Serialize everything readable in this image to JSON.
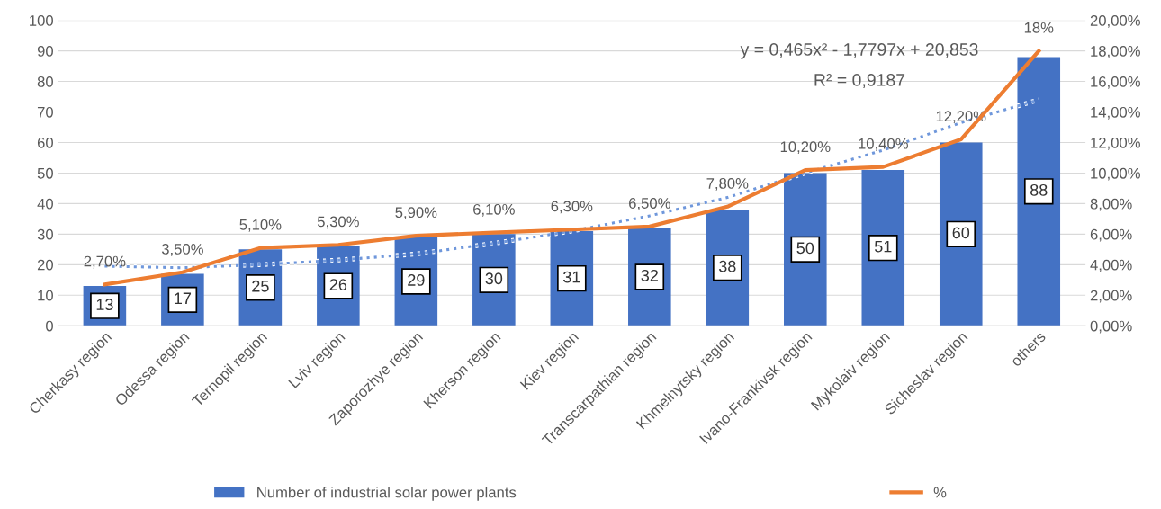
{
  "chart_data": {
    "type": "bar",
    "categories": [
      "Cherkasy region",
      "Odessa region",
      "Ternopil region",
      "Lviv region",
      "Zaporozhye region",
      "Kherson region",
      "Kiev region",
      "Transcarpathian region",
      "Khmelnytsky region",
      "Ivano-Frankivsk region",
      "Mykolaiv region",
      "Sicheslav region",
      "others"
    ],
    "series": [
      {
        "name": "Number of industrial solar power plants",
        "color": "#4472c4",
        "values": [
          13,
          17,
          25,
          26,
          29,
          30,
          31,
          32,
          38,
          50,
          51,
          60,
          88
        ],
        "value_labels": [
          "13",
          "17",
          "25",
          "26",
          "29",
          "30",
          "31",
          "32",
          "38",
          "50",
          "51",
          "60",
          "88"
        ]
      },
      {
        "name": "%",
        "type": "line",
        "axis": "y2",
        "color": "#ed7d31",
        "line_style": "solid",
        "values": [
          2.7,
          3.5,
          5.1,
          5.3,
          5.9,
          6.1,
          6.3,
          6.5,
          7.8,
          10.2,
          10.4,
          12.2,
          18
        ],
        "value_labels": [
          "2,70%",
          "3,50%",
          "5,10%",
          "5,30%",
          "5,90%",
          "6,10%",
          "6,30%",
          "6,50%",
          "7,80%",
          "10,20%",
          "10,40%",
          "12,20%",
          "18%"
        ]
      },
      {
        "type": "line",
        "color": "#6f97db",
        "line_style": "dotted",
        "values": [
          19.5,
          19,
          20,
          21.5,
          23.5,
          27,
          31,
          36,
          42,
          50,
          57.5,
          66.5,
          74
        ]
      }
    ],
    "annotations": [
      "y = 0,465x² - 1,7797x + 20,853",
      "R² = 0,9187"
    ],
    "ylim": [
      0,
      100
    ],
    "yticks": [
      0,
      10,
      20,
      30,
      40,
      50,
      60,
      70,
      80,
      90,
      100
    ],
    "y2lim": [
      0,
      20
    ],
    "y2ticks": [
      {
        "value": 0,
        "label": "0,00%"
      },
      {
        "value": 2,
        "label": "2,00%"
      },
      {
        "value": 4,
        "label": "4,00%"
      },
      {
        "value": 6,
        "label": "6,00%"
      },
      {
        "value": 8,
        "label": "8,00%"
      },
      {
        "value": 10,
        "label": "10,00%"
      },
      {
        "value": 12,
        "label": "12,00%"
      },
      {
        "value": 14,
        "label": "14,00%"
      },
      {
        "value": 16,
        "label": "16,00%"
      },
      {
        "value": 18,
        "label": "18,00%"
      },
      {
        "value": 20,
        "label": "20,00%"
      }
    ],
    "grid": "y",
    "legend": "bottom"
  }
}
